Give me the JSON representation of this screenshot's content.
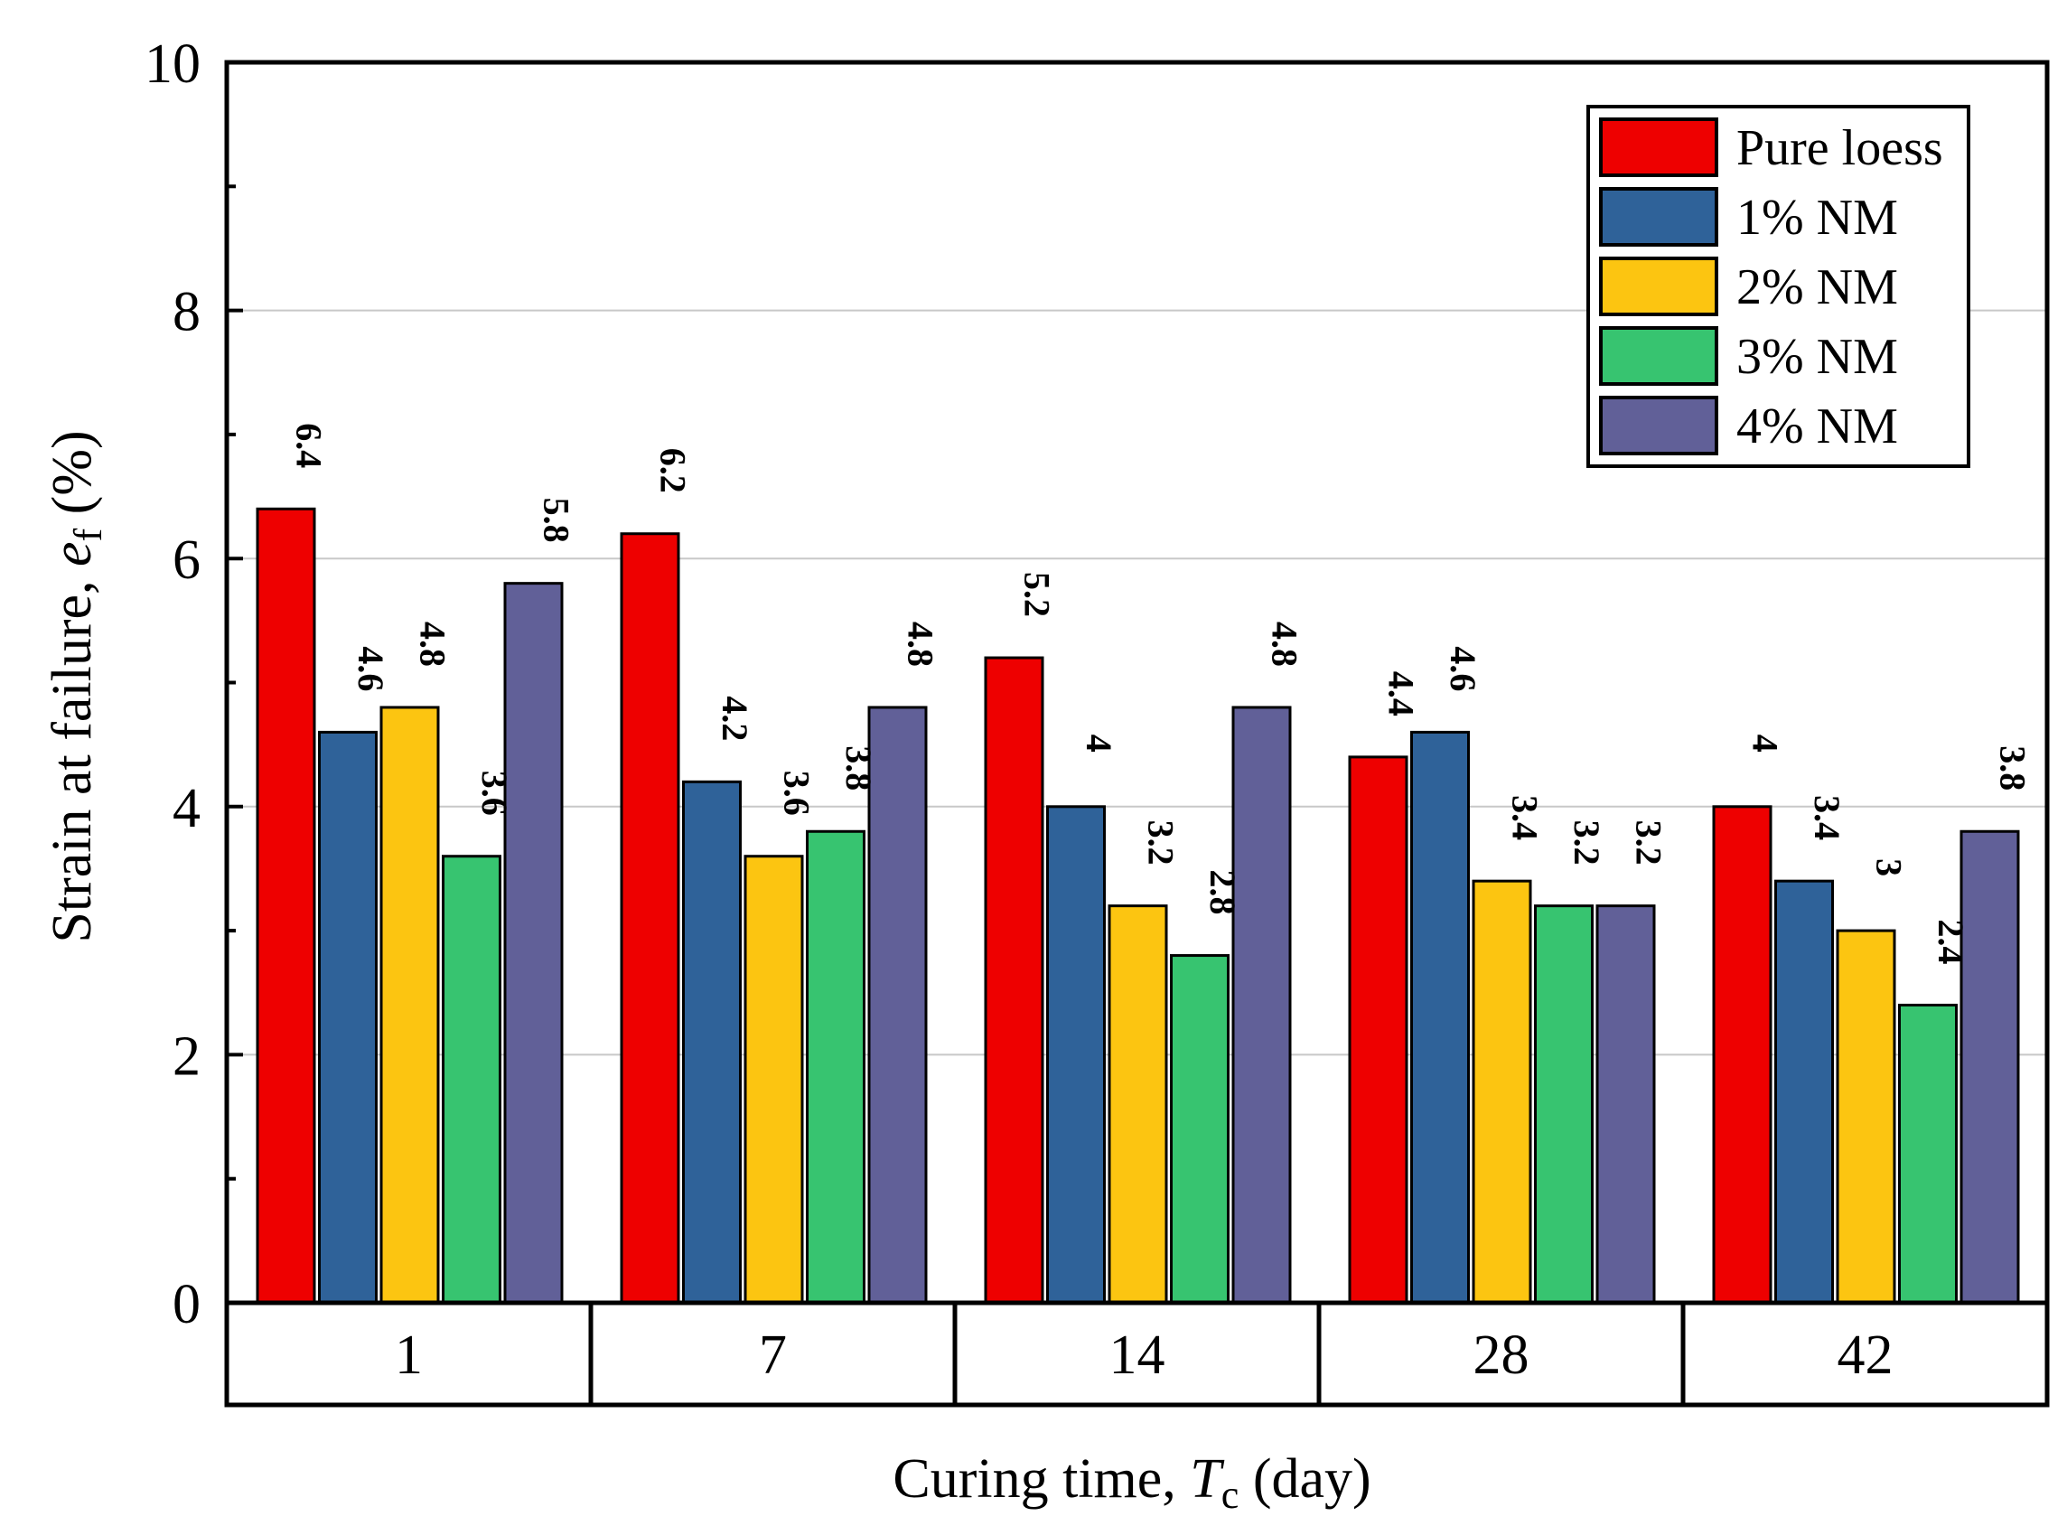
{
  "chart_data": {
    "type": "bar",
    "title": "",
    "xlabel_main": "Curing time, ",
    "xlabel_var": "T",
    "xlabel_sub": "c",
    "xlabel_unit": " (day)",
    "ylabel_main": "Strain at failure, ",
    "ylabel_var": "e",
    "ylabel_sub": "f",
    "ylabel_unit": " (%)",
    "categories": [
      "1",
      "7",
      "14",
      "28",
      "42"
    ],
    "ylim": [
      0,
      10
    ],
    "yticks": [
      "0",
      "2",
      "4",
      "6",
      "8",
      "10"
    ],
    "grid": true,
    "legend_position": "top-right",
    "series": [
      {
        "name": "Pure loess",
        "color": "#ee0000",
        "values": [
          6.4,
          6.2,
          5.2,
          4.4,
          4.0
        ],
        "labels": [
          "6.4",
          "6.2",
          "5.2",
          "4.4",
          "4"
        ]
      },
      {
        "name": "1% NM",
        "color": "#2f6299",
        "values": [
          4.6,
          4.2,
          4.0,
          4.6,
          3.4
        ],
        "labels": [
          "4.6",
          "4.2",
          "4",
          "4.6",
          "3.4"
        ]
      },
      {
        "name": "2% NM",
        "color": "#fcc511",
        "values": [
          4.8,
          3.6,
          3.2,
          3.4,
          3.0
        ],
        "labels": [
          "4.8",
          "3.6",
          "3.2",
          "3.4",
          "3"
        ]
      },
      {
        "name": "3% NM",
        "color": "#37c470",
        "values": [
          3.6,
          3.8,
          2.8,
          3.2,
          2.4
        ],
        "labels": [
          "3.6",
          "3.8",
          "2.8",
          "3.2",
          "2.4"
        ]
      },
      {
        "name": "4% NM",
        "color": "#616098",
        "values": [
          5.8,
          4.8,
          4.8,
          3.2,
          3.8
        ],
        "labels": [
          "5.8",
          "4.8",
          "4.8",
          "3.2",
          "3.8"
        ]
      }
    ]
  }
}
